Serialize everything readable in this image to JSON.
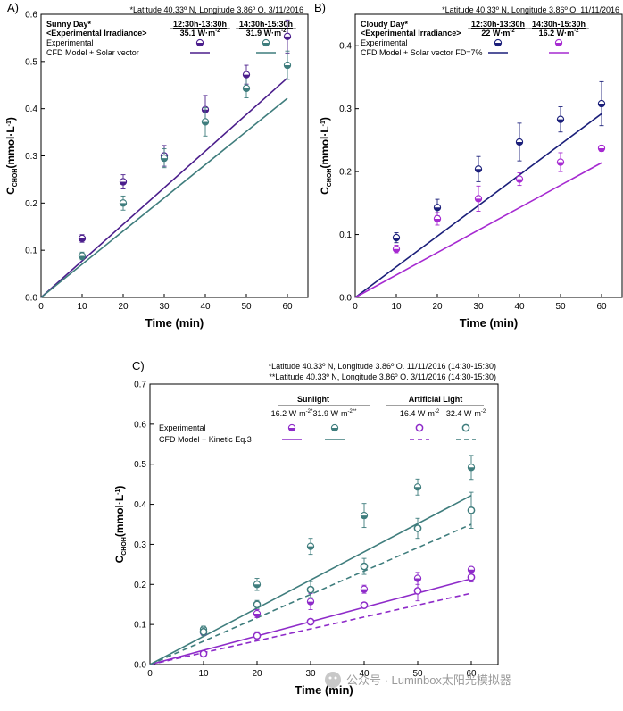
{
  "colors": {
    "purple_dark": "#4b1e8c",
    "purple": "#8e2bc9",
    "teal": "#3f7d7d",
    "navy": "#1b1f7a",
    "violet": "#a62ad1"
  },
  "watermark": "公众号 · Luminbox太阳光模拟器",
  "chart_data": [
    {
      "panel": "A)",
      "type": "scatter",
      "header": "*Latitude 40.33º N, Longitude 3.86º O.  3/11/2016",
      "legend_title": "Sunny Day*",
      "legend_subtitle": "<Experimental Irradiance>",
      "legend_labels": [
        "Experimental",
        "CFD Model + Solar vector"
      ],
      "xlabel": "Time (min)",
      "ylabel_main": "C",
      "ylabel_sub": "CHOH",
      "ylabel_units": "(mmol·L",
      "ylabel_sup": "-1",
      "xlim": [
        0,
        65
      ],
      "ylim": [
        0,
        0.6
      ],
      "xticks": [
        0,
        10,
        20,
        30,
        40,
        50,
        60
      ],
      "yticks": [
        0.0,
        0.1,
        0.2,
        0.3,
        0.4,
        0.5,
        0.6
      ],
      "ytick_labels": [
        "0.0",
        "0.1",
        "0.2",
        "0.3",
        "0.4",
        "0.5",
        "0.6"
      ],
      "series": [
        {
          "name": "12:30h-13:30h",
          "irradiance": "35.1 W·m",
          "irr_sup": "-2",
          "color": "#4b1e8c",
          "marker": "half",
          "line": "solid",
          "x": [
            10,
            20,
            30,
            40,
            50,
            60
          ],
          "y": [
            0.125,
            0.245,
            0.3,
            0.398,
            0.472,
            0.553
          ],
          "err": [
            0.008,
            0.015,
            0.022,
            0.03,
            0.02,
            0.035
          ],
          "model": [
            [
              0,
              0
            ],
            [
              60,
              0.465
            ]
          ]
        },
        {
          "name": "14:30h-15:30h",
          "irradiance": "31.9 W·m",
          "irr_sup": "-2",
          "color": "#3f7d7d",
          "marker": "half",
          "line": "solid",
          "x": [
            10,
            20,
            30,
            40,
            50,
            60
          ],
          "y": [
            0.088,
            0.2,
            0.295,
            0.372,
            0.443,
            0.492
          ],
          "err": [
            0.008,
            0.015,
            0.02,
            0.03,
            0.02,
            0.03
          ],
          "model": [
            [
              0,
              0
            ],
            [
              60,
              0.422
            ]
          ]
        }
      ]
    },
    {
      "panel": "B)",
      "type": "scatter",
      "header": "*Latitude 40.33º N, Longitude 3.86º O.  11/11/2016",
      "legend_title": "Cloudy Day*",
      "legend_subtitle": "<Experimental Irradiance>",
      "legend_labels": [
        "Experimental",
        "CFD Model + Solar vector FD=7%"
      ],
      "xlabel": "Time (min)",
      "ylabel_main": "C",
      "ylabel_sub": "CHOH",
      "ylabel_units": "(mmol·L",
      "ylabel_sup": "-1",
      "xlim": [
        0,
        65
      ],
      "ylim": [
        0,
        0.45
      ],
      "xticks": [
        0,
        10,
        20,
        30,
        40,
        50,
        60
      ],
      "yticks": [
        0.0,
        0.1,
        0.2,
        0.3,
        0.4
      ],
      "ytick_labels": [
        "0.0",
        "0.1",
        "0.2",
        "0.3",
        "0.4"
      ],
      "series": [
        {
          "name": "12:30h-13:30h",
          "irradiance": "22 W·m",
          "irr_sup": "-2",
          "color": "#1b1f7a",
          "marker": "half",
          "line": "solid",
          "x": [
            10,
            20,
            30,
            40,
            50,
            60
          ],
          "y": [
            0.095,
            0.143,
            0.204,
            0.247,
            0.283,
            0.308
          ],
          "err": [
            0.008,
            0.013,
            0.02,
            0.03,
            0.02,
            0.035
          ],
          "model": [
            [
              0,
              0
            ],
            [
              60,
              0.292
            ]
          ]
        },
        {
          "name": "14:30h-15:30h",
          "irradiance": "16.2 W·m",
          "irr_sup": "-2",
          "color": "#a62ad1",
          "marker": "half",
          "line": "solid",
          "x": [
            10,
            20,
            30,
            40,
            50,
            60
          ],
          "y": [
            0.077,
            0.125,
            0.157,
            0.188,
            0.215,
            0.237
          ],
          "err": [
            0.006,
            0.01,
            0.02,
            0.01,
            0.015,
            0.005
          ],
          "model": [
            [
              0,
              0
            ],
            [
              60,
              0.214
            ]
          ]
        }
      ]
    },
    {
      "panel": "C)",
      "type": "scatter",
      "header": "*Latitude 40.33º N, Longitude  3.86º O. 11/11/2016 (14:30-15:30)",
      "header2": "**Latitude 40.33º N, Longitude 3.86º O.   3/11/2016 (14:30-15:30)",
      "group_labels": [
        "Sunlight",
        "Artificial Light"
      ],
      "legend_labels": [
        "Experimental",
        "CFD Model + Kinetic Eq.3"
      ],
      "xlabel": "Time (min)",
      "ylabel_main": "C",
      "ylabel_sub": "CHOH",
      "ylabel_units": "(mmol·L",
      "ylabel_sup": "-1",
      "xlim": [
        0,
        65
      ],
      "ylim": [
        0,
        0.7
      ],
      "xticks": [
        0,
        10,
        20,
        30,
        40,
        50,
        60
      ],
      "yticks": [
        0.0,
        0.1,
        0.2,
        0.3,
        0.4,
        0.5,
        0.6,
        0.7
      ],
      "ytick_labels": [
        "0.0",
        "0.1",
        "0.2",
        "0.3",
        "0.4",
        "0.5",
        "0.6",
        "0.7"
      ],
      "series": [
        {
          "name": "Sunlight 16.2",
          "irradiance": "16.2 W·m",
          "irr_sup": "-2*",
          "color": "#8e2bc9",
          "marker": "half",
          "line": "solid",
          "x": [
            10,
            20,
            30,
            40,
            50,
            60
          ],
          "y": [
            0.08,
            0.127,
            0.157,
            0.188,
            0.215,
            0.237
          ],
          "err": [
            0.006,
            0.01,
            0.02,
            0.01,
            0.015,
            0.005
          ],
          "model": [
            [
              0,
              0
            ],
            [
              60,
              0.214
            ]
          ]
        },
        {
          "name": "Sunlight 31.9",
          "irradiance": "31.9 W·m",
          "irr_sup": "-2**",
          "color": "#3f7d7d",
          "marker": "half",
          "line": "solid",
          "x": [
            10,
            20,
            30,
            40,
            50,
            60
          ],
          "y": [
            0.088,
            0.2,
            0.295,
            0.372,
            0.443,
            0.492
          ],
          "err": [
            0.008,
            0.015,
            0.02,
            0.03,
            0.02,
            0.03
          ],
          "model": [
            [
              0,
              0
            ],
            [
              60,
              0.422
            ]
          ]
        },
        {
          "name": "Artificial 16.4",
          "irradiance": "16.4 W·m",
          "irr_sup": "-2",
          "color": "#8e2bc9",
          "marker": "open",
          "line": "dashed",
          "x": [
            10,
            20,
            30,
            40,
            50,
            60
          ],
          "y": [
            0.027,
            0.072,
            0.107,
            0.148,
            0.184,
            0.218
          ],
          "err": [
            0.003,
            0.01,
            0.005,
            0.005,
            0.025,
            0.012
          ],
          "model": [
            [
              0,
              0
            ],
            [
              60,
              0.178
            ]
          ]
        },
        {
          "name": "Artificial 32.4",
          "irradiance": "32.4 W·m",
          "irr_sup": "-2",
          "color": "#3f7d7d",
          "marker": "open",
          "line": "dashed",
          "x": [
            10,
            20,
            30,
            40,
            50,
            60
          ],
          "y": [
            0.082,
            0.15,
            0.187,
            0.245,
            0.34,
            0.385
          ],
          "err": [
            0.01,
            0.01,
            0.02,
            0.02,
            0.025,
            0.045
          ],
          "model": [
            [
              0,
              0
            ],
            [
              60,
              0.35
            ]
          ]
        }
      ]
    }
  ]
}
